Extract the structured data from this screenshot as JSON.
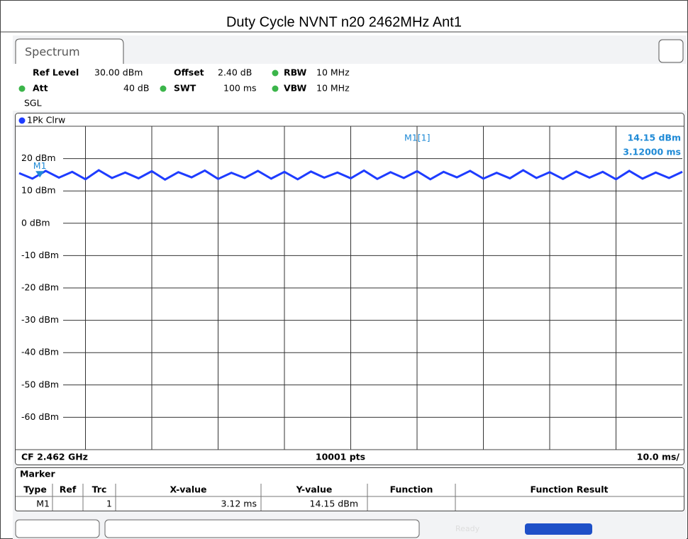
{
  "title": "Duty Cycle NVNT n20 2462MHz Ant1",
  "tab": "Spectrum",
  "settings": {
    "ref_level_label": "Ref Level",
    "ref_level": "30.00 dBm",
    "offset_label": "Offset",
    "offset": "2.40 dB",
    "rbw_label": "RBW",
    "rbw": "10 MHz",
    "att_label": "Att",
    "att": "40 dB",
    "swt_label": "SWT",
    "swt": "100 ms",
    "vbw_label": "VBW",
    "vbw": "10 MHz",
    "mode": "SGL"
  },
  "chart_data": {
    "type": "line",
    "trace_label": "1Pk Clrw",
    "x": [
      0,
      2,
      4,
      6,
      8,
      10,
      12,
      14,
      16,
      18,
      20,
      22,
      24,
      26,
      28,
      30,
      32,
      34,
      36,
      38,
      40,
      42,
      44,
      46,
      48,
      50,
      52,
      54,
      56,
      58,
      60,
      62,
      64,
      66,
      68,
      70,
      72,
      74,
      76,
      78,
      80,
      82,
      84,
      86,
      88,
      90,
      92,
      94,
      96,
      98,
      100
    ],
    "series": [
      {
        "name": "1Pk Clrw",
        "color": "#1e3cff",
        "values": [
          15.5,
          13.8,
          16.2,
          14.1,
          15.9,
          13.6,
          16.4,
          14.0,
          15.7,
          13.9,
          16.1,
          13.5,
          15.8,
          14.2,
          16.3,
          13.7,
          15.6,
          14.0,
          16.2,
          13.8,
          15.9,
          13.6,
          16.0,
          14.1,
          15.7,
          13.9,
          16.3,
          13.7,
          15.8,
          14.0,
          16.1,
          13.6,
          15.9,
          14.2,
          16.2,
          13.8,
          15.6,
          13.9,
          16.4,
          14.0,
          15.8,
          13.7,
          16.0,
          14.1,
          15.9,
          13.6,
          16.2,
          13.8,
          15.7,
          14.0,
          15.9
        ]
      }
    ],
    "xlim": [
      0,
      100
    ],
    "ylim": [
      -70,
      30
    ],
    "yticks": [
      {
        "value": 20,
        "label": "20 dBm"
      },
      {
        "value": 10,
        "label": "10 dBm"
      },
      {
        "value": 0,
        "label": "0 dBm"
      },
      {
        "value": -10,
        "label": "-10 dBm"
      },
      {
        "value": -20,
        "label": "-20 dBm"
      },
      {
        "value": -30,
        "label": "-30 dBm"
      },
      {
        "value": -40,
        "label": "-40 dBm"
      },
      {
        "value": -50,
        "label": "-50 dBm"
      },
      {
        "value": -60,
        "label": "-60 dBm"
      }
    ],
    "grid": true,
    "marker": {
      "name": "M1",
      "readout": "M1[1]",
      "x": 3.12,
      "y": 14.15,
      "y_label": "14.15 dBm",
      "x_label": "3.12000 ms"
    },
    "center": "CF 2.462 GHz",
    "points": "10001 pts",
    "scale": "10.0 ms/"
  },
  "marker_table": {
    "title": "Marker",
    "columns": [
      "Type",
      "Ref",
      "Trc",
      "X-value",
      "Y-value",
      "Function",
      "Function Result"
    ],
    "rows": [
      {
        "type": "M1",
        "trc": "1",
        "x_value": "3.12 ms",
        "y_value": "14.15 dBm"
      }
    ]
  },
  "status": "Ready"
}
